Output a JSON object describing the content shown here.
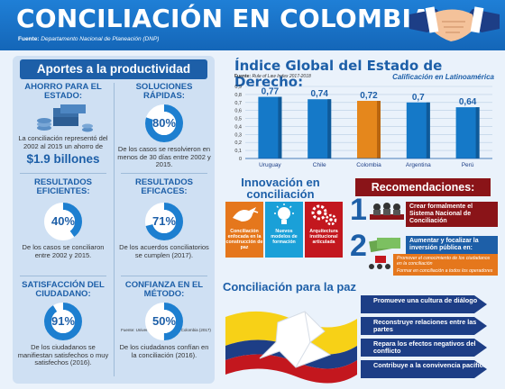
{
  "header": {
    "title": "CONCILIACIÓN EN COLOMBIA",
    "source_label": "Fuente:",
    "source_text": "Departamento Nacional de Planeación (DNP)"
  },
  "aportes": {
    "title": "Aportes a la productividad",
    "ahorro": {
      "head": "AHORRO PARA EL ESTADO:",
      "text": "La conciliación representó del 2002 al 2015 un ahorro de",
      "amount": "$1.9 billones"
    },
    "soluciones": {
      "head": "SOLUCIONES RÁPIDAS:",
      "percent_label": "80%",
      "percent": 80,
      "text": "De los casos se resolvieron en menos de 30 días entre 2002 y 2015."
    },
    "eficientes": {
      "head": "RESULTADOS EFICIENTES:",
      "percent_label": "40%",
      "percent": 40,
      "text": "De los casos se conciliaron entre 2002 y 2015."
    },
    "eficaces": {
      "head": "RESULTADOS EFICACES:",
      "percent_label": "71%",
      "percent": 71,
      "text": "De los acuerdos conciliatorios se cumplen (2017).",
      "source": "Fuente: Universidad Nacional de Colombia (2017)"
    },
    "satisfaccion": {
      "head": "SATISFACCIÓN DEL CIUDADANO:",
      "percent_label": "91%",
      "percent": 91,
      "text": "De los ciudadanos se manifiestan satisfechos o muy satisfechos (2016)."
    },
    "confianza": {
      "head": "CONFIANZA EN EL MÉTODO:",
      "percent_label": "50%",
      "percent": 50,
      "text": "De los ciudadanos confían en la conciliación (2016)."
    }
  },
  "chart": {
    "title": "Índice Global del Estado de Derecho:",
    "source_label": "Fuente:",
    "source_text": "Rule of Law Index 2017-2018",
    "subtitle": "Calificación en Latinoamérica"
  },
  "chart_data": {
    "type": "bar",
    "categories": [
      "Uruguay",
      "Chile",
      "Colombia",
      "Argentina",
      "Perú"
    ],
    "values": [
      0.77,
      0.74,
      0.72,
      0.7,
      0.64
    ],
    "value_labels": [
      "0,77",
      "0,74",
      "0,72",
      "0,7",
      "0,64"
    ],
    "ylim": [
      0,
      0.9
    ],
    "yticks": [
      "0",
      "0,1",
      "0,2",
      "0,3",
      "0,4",
      "0,5",
      "0,6",
      "0,7",
      "0,8",
      "0,9"
    ],
    "colors": [
      "#1579c8",
      "#1579c8",
      "#e5871c",
      "#1579c8",
      "#1579c8"
    ],
    "grid": true
  },
  "innovacion": {
    "title": "Innovación en conciliación",
    "items": [
      {
        "label": "Conciliación enfocada en la construcción de paz",
        "color": "#e5771c",
        "icon": "dove-icon"
      },
      {
        "label": "Nuevos modelos de formación",
        "color": "#1aa0d8",
        "icon": "lightbulb-icon"
      },
      {
        "label": "Arquitectura institucional articulada",
        "color": "#c3171e",
        "icon": "gears-icon"
      }
    ]
  },
  "recomendaciones": {
    "title": "Recomendaciones:",
    "items": [
      {
        "num": "1",
        "text": "Crear formalmente el Sistema Nacional de Conciliación"
      },
      {
        "num": "2",
        "text": "Aumentar y focalizar la inversión pública en:"
      }
    ],
    "sub_items": [
      "Promover el conocimiento de los ciudadanos en la conciliación",
      "Formar en conciliación a todos los operadores"
    ]
  },
  "paz": {
    "title": "Conciliación para la paz",
    "items": [
      "Promueve una cultura de diálogo",
      "Reconstruye relaciones entre las partes",
      "Repara los efectos negativos del conflicto",
      "Contribuye a la convivencia pacífica"
    ],
    "flag_colors": [
      "#f7d117",
      "#1d3e86",
      "#c3171e"
    ]
  }
}
